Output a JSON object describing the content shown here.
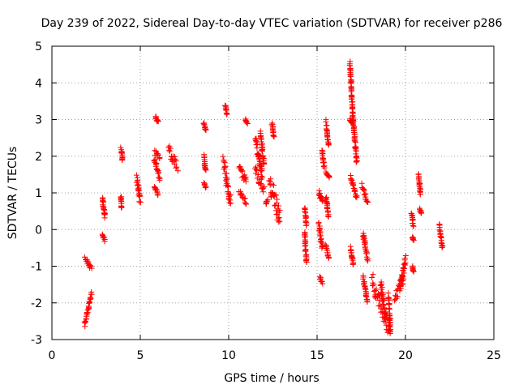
{
  "chart_data": {
    "type": "scatter",
    "title": "Day 239 of 2022, Sidereal Day-to-day VTEC variation (SDTVAR) for receiver p286",
    "xlabel": "GPS time / hours",
    "ylabel": "SDTVAR / TECUs",
    "xlim": [
      0,
      25
    ],
    "ylim": [
      -3,
      5
    ],
    "xticks": [
      "0",
      "5",
      "10",
      "15",
      "20",
      "25"
    ],
    "yticks": [
      "-3",
      "-2",
      "-1",
      "0",
      "1",
      "2",
      "3",
      "4",
      "5"
    ],
    "grid": true,
    "marker": "plus",
    "color": "#ff0000",
    "series": [
      {
        "name": "SDTVAR",
        "segments": [
          [
            1.85,
            -0.8,
            2.25,
            -1.05,
            0.06
          ],
          [
            1.85,
            -2.6,
            2.25,
            -1.75,
            0.05
          ],
          [
            2.85,
            -0.15,
            3.0,
            -0.3,
            0.05
          ],
          [
            2.85,
            0.9,
            3.0,
            0.35,
            0.05
          ],
          [
            3.9,
            2.2,
            4.0,
            1.9,
            0.05
          ],
          [
            3.9,
            0.9,
            3.95,
            0.6,
            0.04
          ],
          [
            4.8,
            1.4,
            5.0,
            0.75,
            0.15
          ],
          [
            5.85,
            3.1,
            6.0,
            2.9,
            0.05
          ],
          [
            5.8,
            2.1,
            6.1,
            1.95,
            0.08
          ],
          [
            5.8,
            1.9,
            6.1,
            1.4,
            0.1
          ],
          [
            5.8,
            1.2,
            6.0,
            0.95,
            0.05
          ],
          [
            6.6,
            2.2,
            7.1,
            1.7,
            0.15
          ],
          [
            8.6,
            2.9,
            8.7,
            2.7,
            0.04
          ],
          [
            8.6,
            2.0,
            8.7,
            1.6,
            0.05
          ],
          [
            8.6,
            1.25,
            8.7,
            1.15,
            0.03
          ],
          [
            9.8,
            3.4,
            9.9,
            3.15,
            0.04
          ],
          [
            9.7,
            1.8,
            10.1,
            0.8,
            0.2
          ],
          [
            10.6,
            1.7,
            11.0,
            1.3,
            0.12
          ],
          [
            10.6,
            1.0,
            11.0,
            0.75,
            0.08
          ],
          [
            10.95,
            3.0,
            11.05,
            2.9,
            0.02
          ],
          [
            11.5,
            2.5,
            11.9,
            1.5,
            0.15
          ],
          [
            11.5,
            1.6,
            12.0,
            1.1,
            0.15
          ],
          [
            11.8,
            2.6,
            12.0,
            1.8,
            0.1
          ],
          [
            12.1,
            0.7,
            12.2,
            0.8,
            0.03
          ],
          [
            12.45,
            2.9,
            12.55,
            2.5,
            0.05
          ],
          [
            12.3,
            1.4,
            12.9,
            0.3,
            0.3
          ],
          [
            14.3,
            0.6,
            14.4,
            0.1,
            0.04
          ],
          [
            14.3,
            -0.1,
            14.4,
            -0.9,
            0.06
          ],
          [
            15.1,
            1.0,
            15.3,
            0.75,
            0.06
          ],
          [
            15.1,
            0.2,
            15.3,
            -0.5,
            0.1
          ],
          [
            15.15,
            -1.3,
            15.3,
            -1.45,
            0.04
          ],
          [
            15.3,
            2.15,
            15.4,
            1.7,
            0.04
          ],
          [
            15.5,
            2.95,
            15.65,
            2.3,
            0.06
          ],
          [
            15.5,
            1.55,
            15.7,
            1.4,
            0.04
          ],
          [
            15.5,
            0.9,
            15.65,
            0.35,
            0.05
          ],
          [
            15.5,
            -0.4,
            15.65,
            -0.8,
            0.05
          ],
          [
            16.85,
            4.55,
            17.05,
            2.9,
            0.06
          ],
          [
            17.05,
            2.95,
            17.25,
            1.8,
            0.06
          ],
          [
            16.85,
            3.0,
            17.0,
            2.9,
            0.02
          ],
          [
            16.9,
            1.45,
            17.25,
            0.85,
            0.05
          ],
          [
            16.9,
            -0.5,
            17.05,
            -0.95,
            0.05
          ],
          [
            17.55,
            1.2,
            17.85,
            0.75,
            0.06
          ],
          [
            17.6,
            -0.1,
            17.85,
            -0.8,
            0.08
          ],
          [
            17.6,
            -1.3,
            17.85,
            -1.95,
            0.08
          ],
          [
            18.1,
            -1.4,
            19.1,
            -2.7,
            0.25
          ],
          [
            18.6,
            -1.5,
            18.9,
            -2.5,
            0.12
          ],
          [
            19.05,
            -1.8,
            19.15,
            -2.8,
            0.08
          ],
          [
            19.4,
            -1.9,
            19.9,
            -1.3,
            0.15
          ],
          [
            19.7,
            -1.6,
            20.0,
            -0.8,
            0.1
          ],
          [
            20.35,
            0.45,
            20.45,
            0.1,
            0.04
          ],
          [
            20.4,
            -0.2,
            20.45,
            -0.3,
            0.02
          ],
          [
            20.4,
            -1.0,
            20.45,
            -1.15,
            0.02
          ],
          [
            20.75,
            1.5,
            20.85,
            0.95,
            0.05
          ],
          [
            20.8,
            0.55,
            20.9,
            0.45,
            0.03
          ],
          [
            21.9,
            0.15,
            22.1,
            -0.5,
            0.05
          ]
        ]
      }
    ]
  }
}
